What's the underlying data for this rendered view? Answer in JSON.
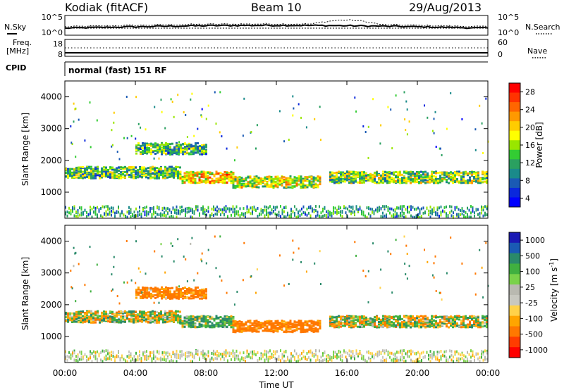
{
  "header": {
    "station": "Kodiak (fitACF)",
    "beam": "Beam 10",
    "date": "29/Aug/2013"
  },
  "summary": {
    "nsky_label": "N.Sky",
    "nsearch_label": "N.Search",
    "freq_label_1": "Freq.",
    "freq_label_2": "[MHz]",
    "nave_label": "Nave",
    "cpid_label": "CPID",
    "cpid_text": "normal (fast) 151 RF",
    "noise_ticks_left": [
      "10^5",
      "10^0"
    ],
    "noise_ticks_right": [
      "10^5",
      "10^0"
    ],
    "freq_ticks_left": [
      "18",
      "8"
    ],
    "freq_ticks_right": [
      "60",
      "0"
    ]
  },
  "xaxis": {
    "title": "Time UT",
    "ticks": [
      "00:00",
      "04:00",
      "08:00",
      "12:00",
      "16:00",
      "20:00",
      "00:00"
    ]
  },
  "power_colorbar": {
    "title": "Power [dB]",
    "ticks": [
      "28",
      "24",
      "20",
      "16",
      "12",
      "8",
      "4"
    ],
    "colors": [
      "#ff0000",
      "#ff3300",
      "#ff6600",
      "#ff9900",
      "#ffcc00",
      "#ffff00",
      "#99e600",
      "#33cc33",
      "#2aa060",
      "#1a8a8a",
      "#1a5ab4",
      "#0a28dc",
      "#0000ff"
    ]
  },
  "velocity_colorbar": {
    "title": "Velocity [m s",
    "superscript": "-1",
    "ticks": [
      "1000",
      "500",
      "100",
      "25",
      "-25",
      "-100",
      "-500",
      "-1000"
    ],
    "colors": [
      "#1a1ab4",
      "#1a5ab4",
      "#2a8a6a",
      "#40b040",
      "#7ad24a",
      "#b9b9b0",
      "#c8c8c0",
      "#ffd24a",
      "#ffa500",
      "#ff7800",
      "#ff3c00",
      "#ff0000"
    ]
  },
  "chart_data": [
    {
      "type": "heatmap",
      "name_panel": "power",
      "ylabel": "Slant Range [km]",
      "yticks": [
        "4000",
        "3000",
        "2000",
        "1000"
      ],
      "ylim": [
        180,
        4500
      ],
      "xlim": [
        0,
        24
      ],
      "description_features": [
        {
          "t_start": 0.0,
          "t_end": 6.5,
          "range_center": 1650,
          "value_db": 12
        },
        {
          "t_start": 6.5,
          "t_end": 9.5,
          "range_center": 1500,
          "value_db": 20
        },
        {
          "t_start": 9.5,
          "t_end": 14.5,
          "range_center": 1350,
          "value_db": 16
        },
        {
          "t_start": 15.0,
          "t_end": 24.0,
          "range_center": 1500,
          "value_db": 14
        },
        {
          "t_start": 4.0,
          "t_end": 8.0,
          "range_center": 2400,
          "value_db": 12
        }
      ]
    },
    {
      "type": "heatmap",
      "name_panel": "velocity",
      "ylabel": "Slant Range [km]",
      "yticks": [
        "4000",
        "3000",
        "2000",
        "1000"
      ],
      "ylim": [
        180,
        4500
      ],
      "xlim": [
        0,
        24
      ],
      "description_features": [
        {
          "t_start": 0.0,
          "t_end": 6.5,
          "range_center": 1650,
          "value_ms": 0
        },
        {
          "t_start": 6.5,
          "t_end": 9.5,
          "range_center": 1500,
          "value_ms": 100
        },
        {
          "t_start": 9.5,
          "t_end": 14.5,
          "range_center": 1350,
          "value_ms": -200
        },
        {
          "t_start": 15.0,
          "t_end": 24.0,
          "range_center": 1500,
          "value_ms": 0
        },
        {
          "t_start": 4.0,
          "t_end": 8.0,
          "range_center": 2400,
          "value_ms": -150
        }
      ]
    }
  ]
}
